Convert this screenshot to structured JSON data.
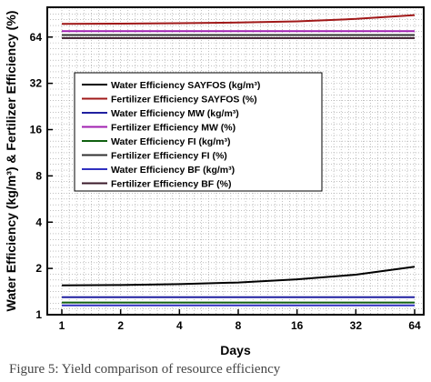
{
  "caption": "Figure 5: Yield comparison of resource efficiency",
  "chart_data": {
    "type": "line",
    "x_scale": "log2",
    "y_scale": "log2",
    "xlabel": "Days",
    "ylabel": "Water Efficiency (kg/m³) & Fertilizer Efficiency (%)",
    "xlim": [
      1,
      64
    ],
    "ylim": [
      1,
      100
    ],
    "x_ticks": [
      "1",
      "2",
      "4",
      "8",
      "16",
      "32",
      "64"
    ],
    "y_ticks": [
      "1",
      "2",
      "4",
      "8",
      "16",
      "32",
      "64"
    ],
    "grid": true,
    "legend_position": "center-left",
    "series": [
      {
        "name": "Water Efficiency SAYFOS (kg/m³)",
        "color": "#000000",
        "x": [
          1,
          2,
          4,
          8,
          16,
          32,
          64
        ],
        "y": [
          1.55,
          1.56,
          1.58,
          1.62,
          1.7,
          1.82,
          2.05
        ]
      },
      {
        "name": "Fertilizer Efficiency SAYFOS (%)",
        "color": "#a01818",
        "x": [
          1,
          2,
          4,
          8,
          16,
          32,
          64
        ],
        "y": [
          78,
          78.3,
          78.8,
          79.5,
          81,
          84,
          89
        ]
      },
      {
        "name": "Water Efficiency MW (kg/m³)",
        "color": "#2020a0",
        "x": [
          1,
          64
        ],
        "y": [
          1.3,
          1.3
        ]
      },
      {
        "name": "Fertilizer Efficiency MW (%)",
        "color": "#a020b0",
        "x": [
          1,
          64
        ],
        "y": [
          70,
          70
        ]
      },
      {
        "name": "Water Efficiency FI (kg/m³)",
        "color": "#106010",
        "x": [
          1,
          64
        ],
        "y": [
          1.2,
          1.2
        ]
      },
      {
        "name": "Fertilizer Efficiency FI (%)",
        "color": "#303030",
        "x": [
          1,
          64
        ],
        "y": [
          66,
          66
        ]
      },
      {
        "name": "Water Efficiency BF (kg/m³)",
        "color": "#3030c0",
        "x": [
          1,
          64
        ],
        "y": [
          1.15,
          1.15
        ]
      },
      {
        "name": "Fertilizer Efficiency BF (%)",
        "color": "#3a1a2a",
        "x": [
          1,
          64
        ],
        "y": [
          63,
          63
        ]
      }
    ]
  }
}
